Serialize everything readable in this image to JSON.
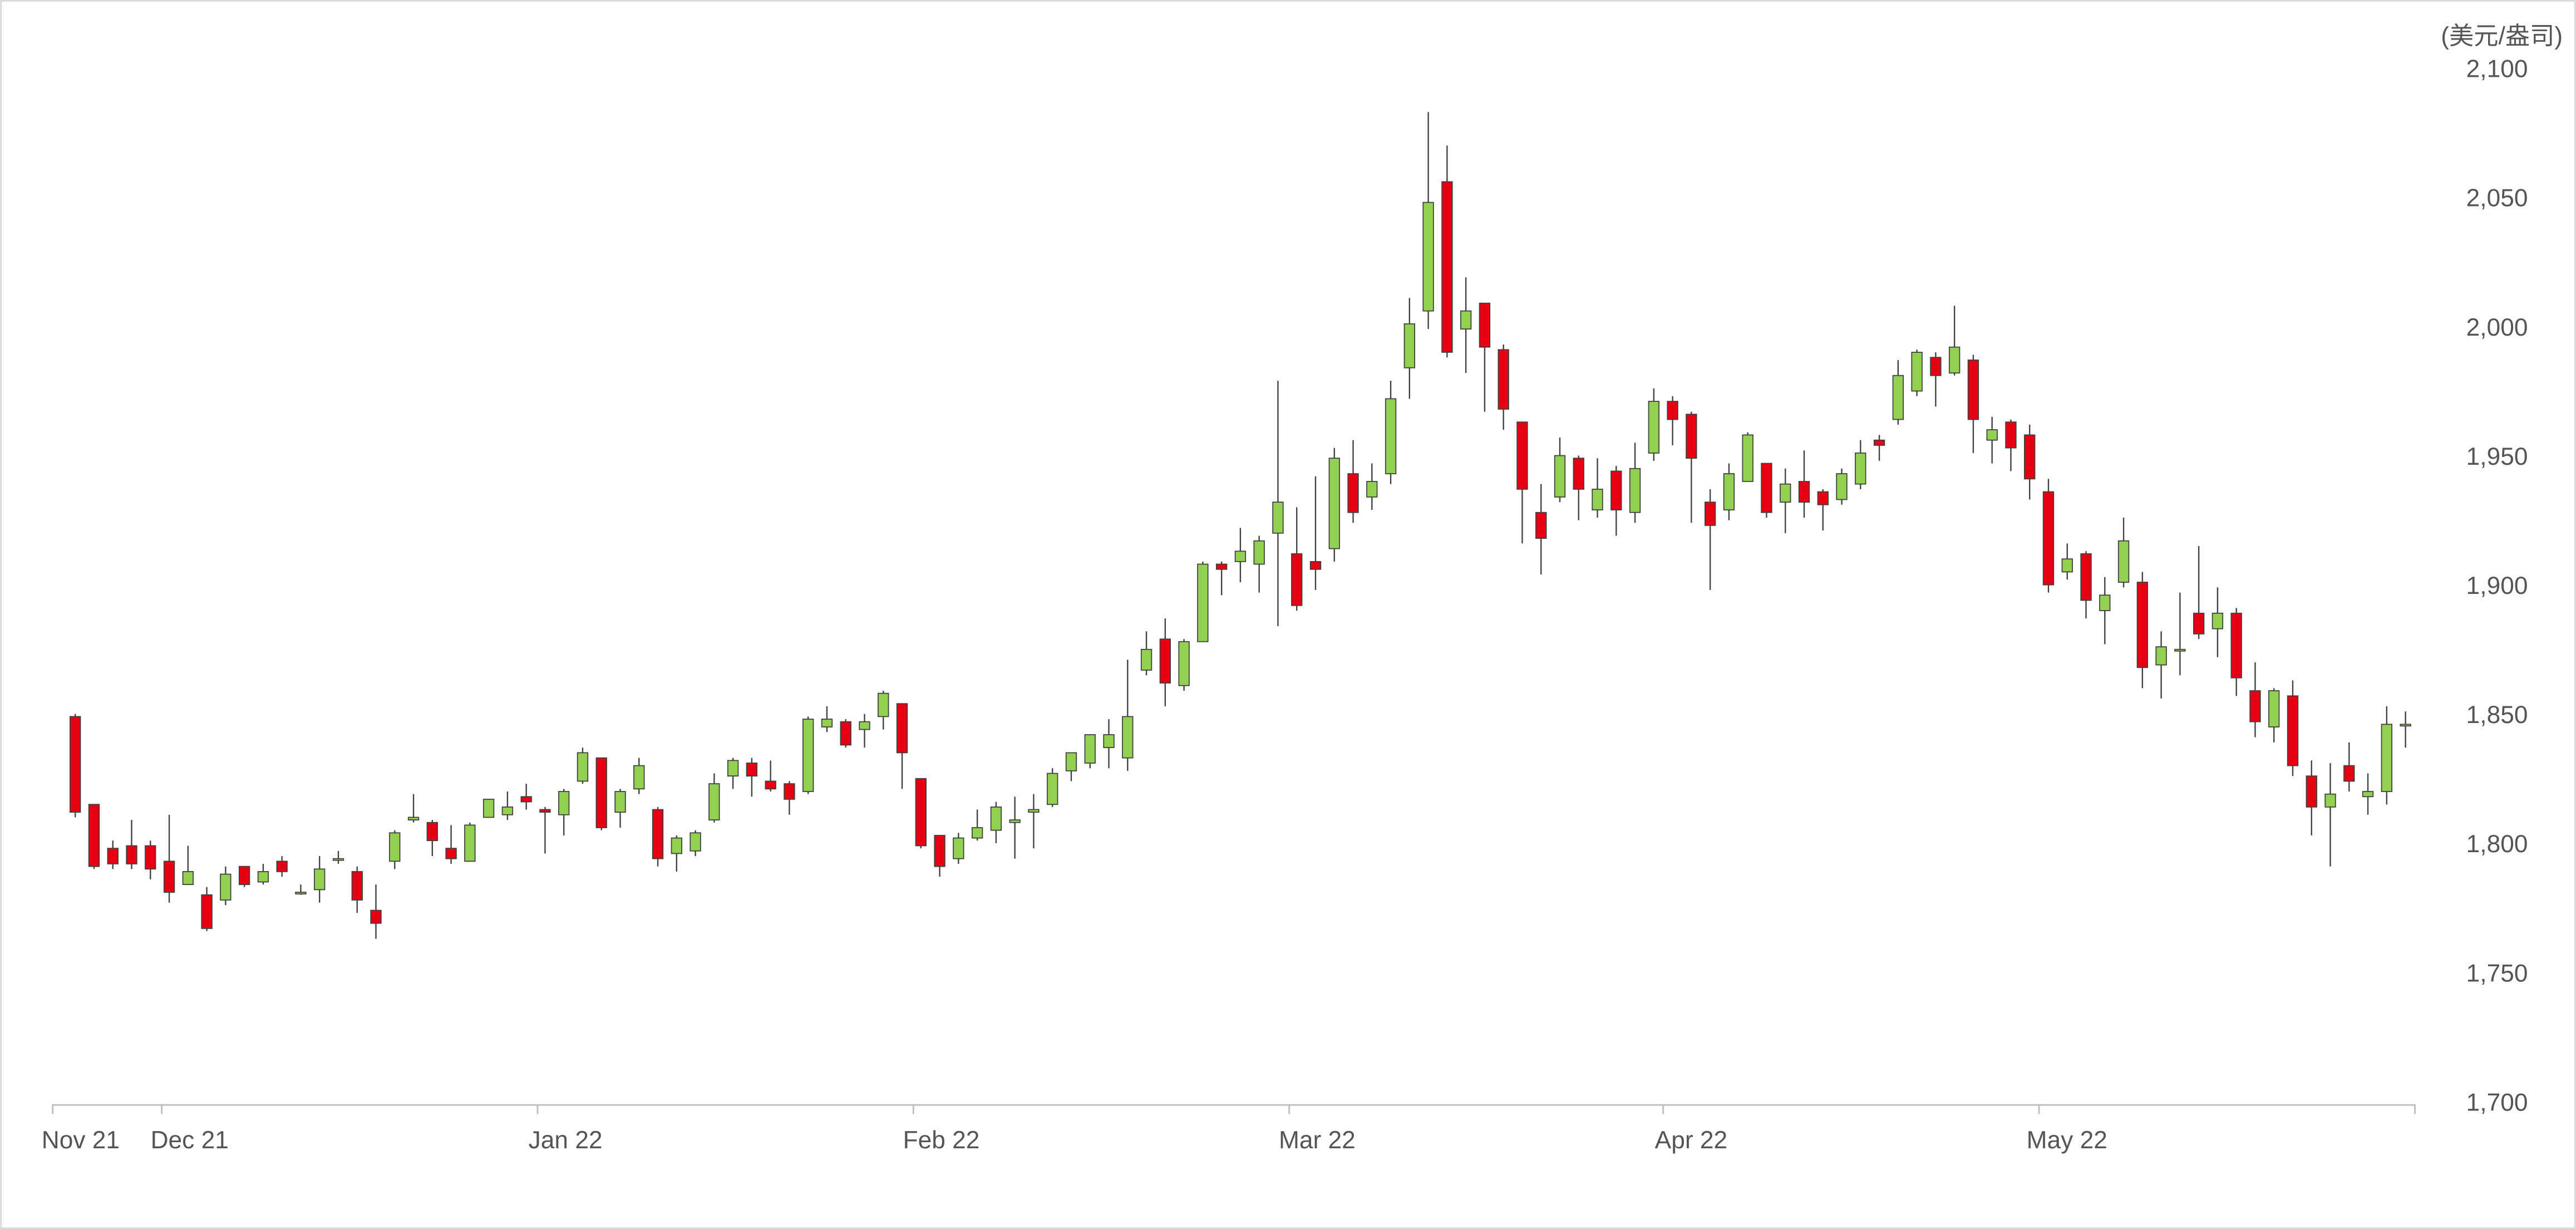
{
  "chart_data": {
    "type": "candlestick",
    "unit_label": "(美元/盎司)",
    "up_color": "#92d050",
    "down_color": "#e60012",
    "open": [
      1850,
      1816,
      1799,
      1800,
      1800,
      1794,
      1785,
      1781,
      1779,
      1792,
      1786,
      1794,
      1782,
      1783,
      1795,
      1790,
      1775,
      1794,
      1810,
      1809,
      1799,
      1794,
      1811,
      1812,
      1819,
      1814,
      1812,
      1825,
      1834,
      1813,
      1822,
      1814,
      1797,
      1798,
      1810,
      1827,
      1832,
      1825,
      1824,
      1821,
      1846,
      1848,
      1845,
      1850,
      1855,
      1826,
      1804,
      1795,
      1803,
      1806,
      1809,
      1813,
      1816,
      1829,
      1832,
      1838,
      1834,
      1868,
      1880,
      1862,
      1879,
      1909,
      1910,
      1909,
      1921,
      1913,
      1910,
      1915,
      1944,
      1935,
      1944,
      1985,
      2007,
      2057,
      2000,
      2010,
      1992,
      1964,
      1929,
      1935,
      1950,
      1930,
      1945,
      1929,
      1952,
      1972,
      1967,
      1933,
      1930,
      1941,
      1948,
      1933,
      1941,
      1937,
      1934,
      1940,
      1957,
      1965,
      1976,
      1989,
      1983,
      1988,
      1957,
      1964,
      1959,
      1937,
      1906,
      1913,
      1891,
      1902,
      1902,
      1870,
      1876,
      1890,
      1884,
      1890,
      1860,
      1846,
      1858,
      1827,
      1815,
      1831,
      1819,
      1821,
      1847
    ],
    "high": [
      1851,
      1816,
      1802,
      1810,
      1802,
      1812,
      1800,
      1784,
      1792,
      1792,
      1793,
      1796,
      1785,
      1796,
      1798,
      1792,
      1785,
      1806,
      1820,
      1810,
      1808,
      1809,
      1818,
      1821,
      1824,
      1815,
      1822,
      1838,
      1834,
      1822,
      1834,
      1815,
      1804,
      1806,
      1828,
      1834,
      1834,
      1833,
      1825,
      1850,
      1854,
      1849,
      1851,
      1860,
      1855,
      1826,
      1804,
      1805,
      1814,
      1817,
      1819,
      1820,
      1830,
      1836,
      1843,
      1849,
      1872,
      1883,
      1888,
      1880,
      1910,
      1910,
      1923,
      1920,
      1980,
      1931,
      1943,
      1954,
      1957,
      1948,
      1980,
      2012,
      2084,
      2071,
      2020,
      2010,
      1994,
      1964,
      1940,
      1958,
      1951,
      1950,
      1947,
      1956,
      1977,
      1974,
      1968,
      1938,
      1948,
      1960,
      1948,
      1946,
      1953,
      1938,
      1946,
      1957,
      1959,
      1988,
      1992,
      1991,
      2009,
      1990,
      1966,
      1965,
      1963,
      1942,
      1917,
      1914,
      1904,
      1927,
      1906,
      1883,
      1898,
      1916,
      1900,
      1892,
      1871,
      1861,
      1864,
      1833,
      1832,
      1840,
      1828,
      1854,
      1852
    ],
    "low": [
      1811,
      1791,
      1791,
      1791,
      1787,
      1778,
      1785,
      1767,
      1777,
      1784,
      1785,
      1788,
      1781,
      1778,
      1793,
      1774,
      1764,
      1791,
      1809,
      1796,
      1793,
      1794,
      1811,
      1810,
      1814,
      1797,
      1804,
      1824,
      1806,
      1807,
      1820,
      1792,
      1790,
      1796,
      1809,
      1822,
      1819,
      1821,
      1812,
      1820,
      1844,
      1838,
      1838,
      1845,
      1822,
      1799,
      1788,
      1793,
      1802,
      1801,
      1795,
      1799,
      1815,
      1825,
      1830,
      1830,
      1829,
      1866,
      1854,
      1860,
      1879,
      1897,
      1902,
      1898,
      1885,
      1891,
      1899,
      1910,
      1925,
      1930,
      1940,
      1973,
      2000,
      1989,
      1983,
      1968,
      1961,
      1917,
      1905,
      1933,
      1926,
      1927,
      1920,
      1925,
      1949,
      1955,
      1925,
      1899,
      1926,
      1941,
      1927,
      1921,
      1927,
      1922,
      1932,
      1938,
      1949,
      1963,
      1974,
      1970,
      1982,
      1952,
      1948,
      1945,
      1934,
      1898,
      1903,
      1888,
      1878,
      1900,
      1861,
      1857,
      1866,
      1880,
      1873,
      1858,
      1842,
      1840,
      1827,
      1804,
      1792,
      1821,
      1812,
      1816,
      1838
    ],
    "close": [
      1813,
      1792,
      1793,
      1793,
      1791,
      1782,
      1790,
      1768,
      1789,
      1785,
      1790,
      1790,
      1782,
      1791,
      1795,
      1779,
      1770,
      1805,
      1811,
      1802,
      1795,
      1808,
      1818,
      1815,
      1817,
      1813,
      1821,
      1836,
      1807,
      1821,
      1831,
      1795,
      1803,
      1805,
      1824,
      1833,
      1827,
      1822,
      1818,
      1849,
      1849,
      1839,
      1848,
      1859,
      1836,
      1800,
      1792,
      1803,
      1807,
      1815,
      1810,
      1814,
      1828,
      1836,
      1843,
      1843,
      1850,
      1876,
      1863,
      1879,
      1909,
      1907,
      1914,
      1918,
      1933,
      1893,
      1907,
      1950,
      1929,
      1941,
      1973,
      2002,
      2049,
      1991,
      2007,
      1993,
      1969,
      1938,
      1919,
      1951,
      1938,
      1938,
      1930,
      1946,
      1972,
      1965,
      1950,
      1924,
      1944,
      1959,
      1929,
      1940,
      1933,
      1932,
      1944,
      1952,
      1955,
      1982,
      1991,
      1982,
      1993,
      1965,
      1961,
      1954,
      1942,
      1901,
      1911,
      1895,
      1897,
      1918,
      1869,
      1877,
      1876,
      1882,
      1890,
      1865,
      1848,
      1860,
      1831,
      1815,
      1820,
      1825,
      1821,
      1847,
      1847
    ],
    "xlim": [
      -1.2,
      124.5
    ],
    "xticks": [
      {
        "value": -1.2,
        "label": "Nov 21"
      },
      {
        "value": 4.6,
        "label": "Dec 21"
      },
      {
        "value": 24.6,
        "label": "Jan 22"
      },
      {
        "value": 44.6,
        "label": "Feb 22"
      },
      {
        "value": 64.6,
        "label": "Mar 22"
      },
      {
        "value": 84.5,
        "label": "Apr 22"
      },
      {
        "value": 104.5,
        "label": "May 22"
      },
      {
        "value": 124.5,
        "label": ""
      }
    ],
    "ylim": [
      1700,
      2100
    ],
    "yticks": [
      {
        "value": 1700,
        "label": "1,700"
      },
      {
        "value": 1750,
        "label": "1,750"
      },
      {
        "value": 1800,
        "label": "1,800"
      },
      {
        "value": 1850,
        "label": "1,850"
      },
      {
        "value": 1900,
        "label": "1,900"
      },
      {
        "value": 1950,
        "label": "1,950"
      },
      {
        "value": 2000,
        "label": "2,000"
      },
      {
        "value": 2050,
        "label": "2,050"
      },
      {
        "value": 2100,
        "label": "2,100"
      }
    ]
  }
}
